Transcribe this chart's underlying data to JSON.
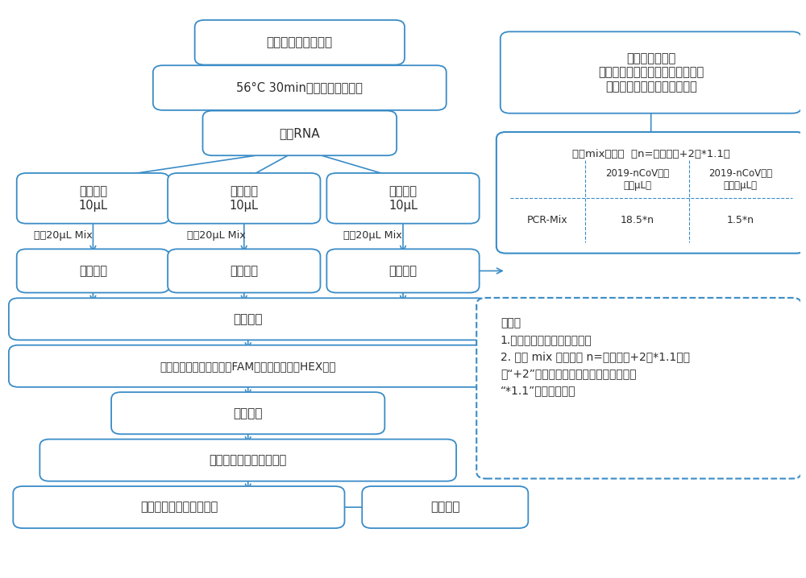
{
  "bg_color": "#ffffff",
  "box_edge_color": "#3a8cc7",
  "arrow_color": "#3a8cc7",
  "text_color": "#2c2c2c",
  "figsize": [
    10.0,
    7.18
  ],
  "dpi": 100,
  "note_text_lines": [
    "备注：",
    "1.详细实验流程参考说明书。",
    "2. 计算 mix 用量中的 n=（标本数+2）*1.1，其",
    "中“+2”为阳性对照及阴性对照所需试剂，",
    "“*1.1”为损耗计算。"
  ]
}
